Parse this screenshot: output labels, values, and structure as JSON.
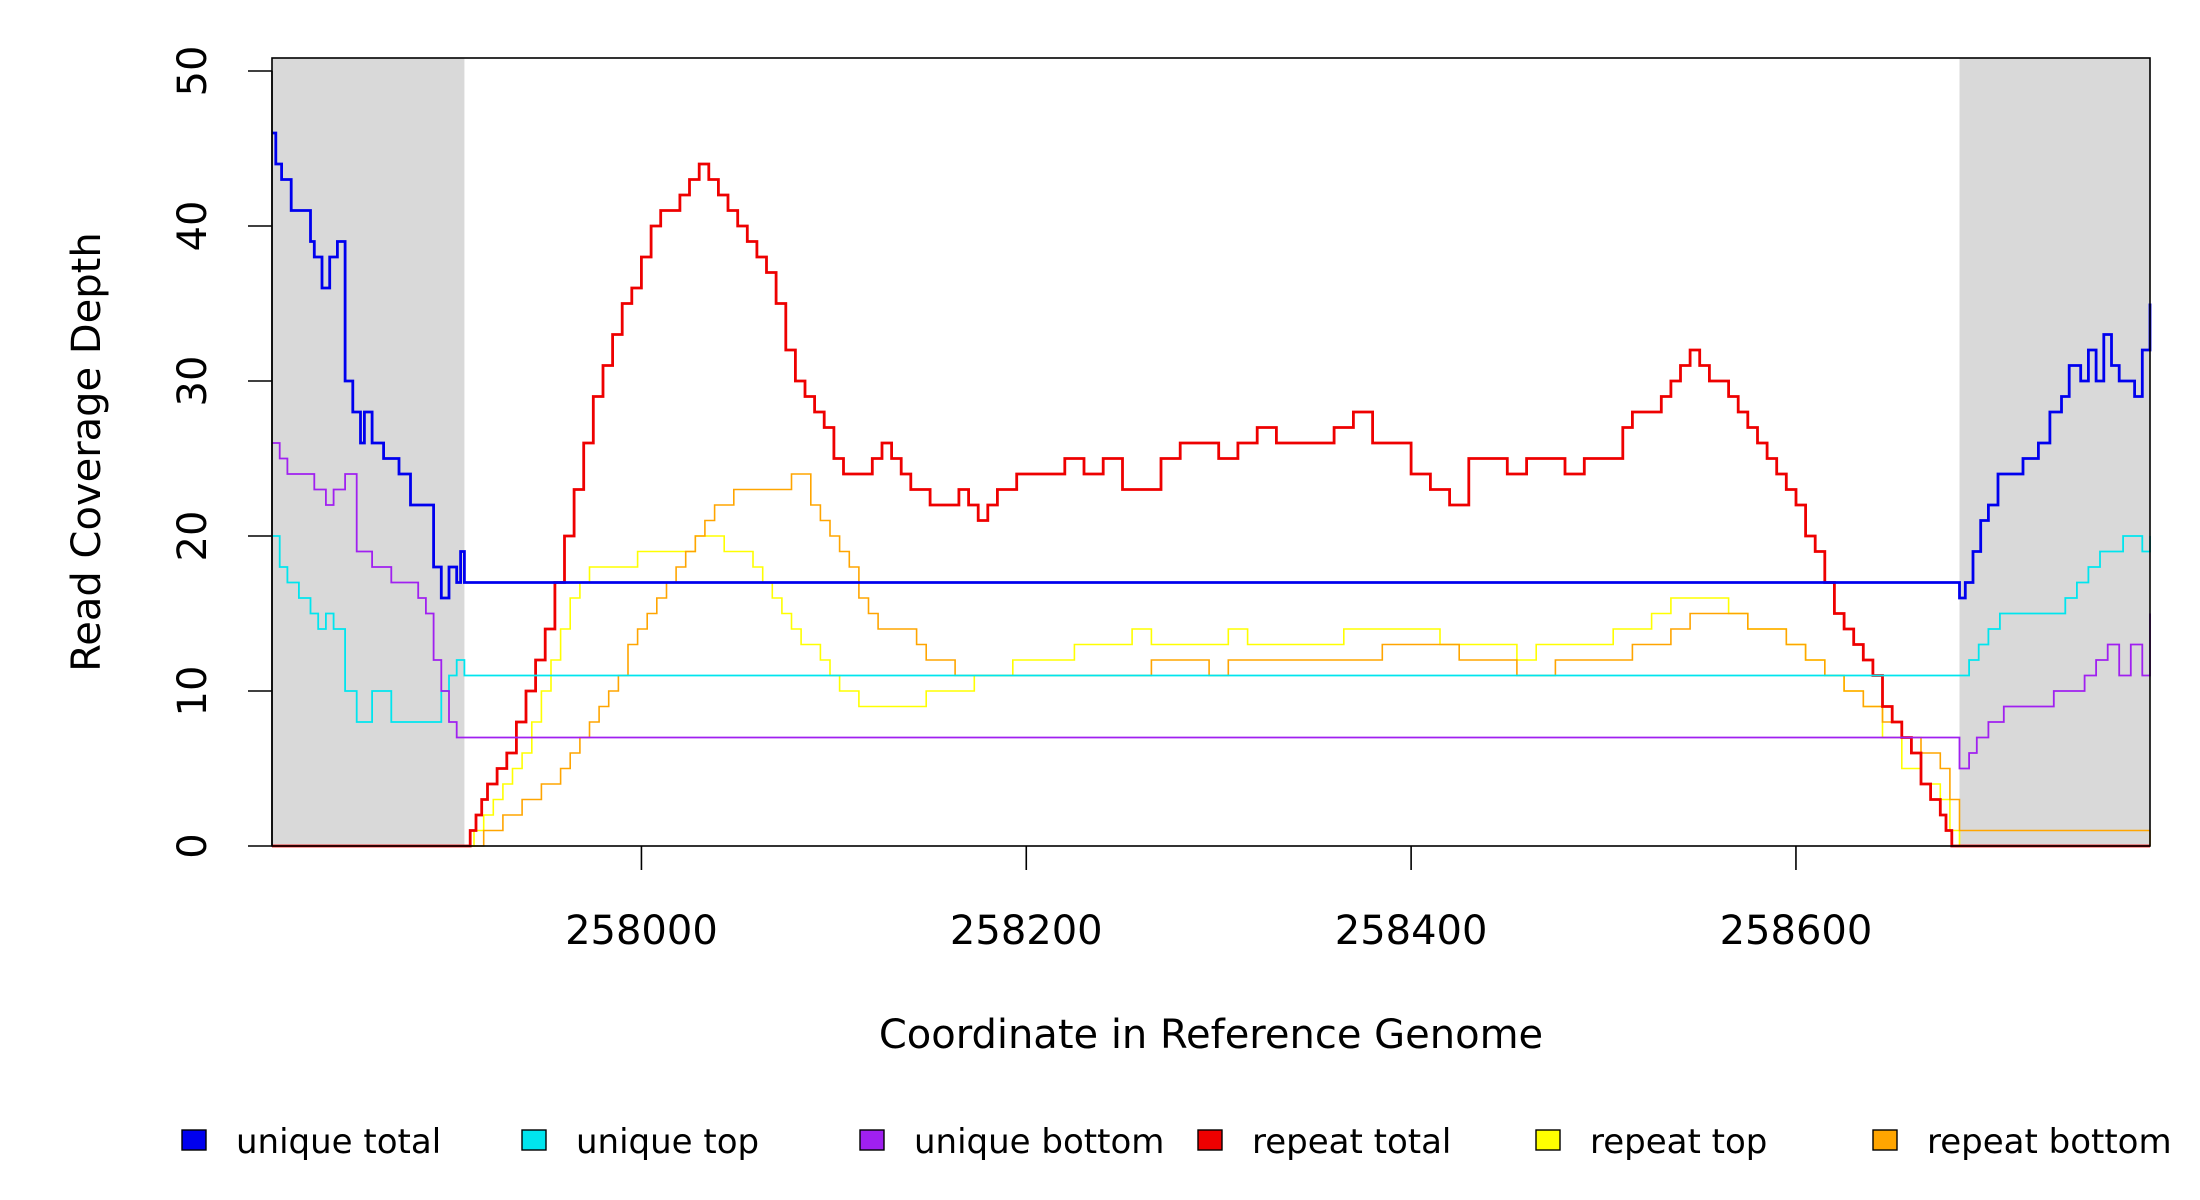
{
  "chart_data": {
    "type": "line",
    "title": "",
    "xlabel": "Coordinate in Reference Genome",
    "ylabel": "Read Coverage Depth",
    "xlim": [
      257808,
      258784
    ],
    "ylim": [
      0,
      50
    ],
    "x_ticks": [
      258000,
      258200,
      258400,
      258600
    ],
    "x_tick_labels": [
      "258000",
      "258200",
      "258400",
      "258600"
    ],
    "y_ticks": [
      0,
      10,
      20,
      30,
      40,
      50
    ],
    "y_tick_labels": [
      "0",
      "10",
      "20",
      "30",
      "40",
      "50"
    ],
    "shaded_regions": [
      [
        257808,
        257908
      ],
      [
        258685,
        258784
      ]
    ],
    "shade_color": "#d9d9d9",
    "grid": false,
    "legend_position": "bottom",
    "series": [
      {
        "name": "unique total",
        "color": "#0000ee",
        "x": [
          257808,
          257810,
          257813,
          257818,
          257828,
          257830,
          257834,
          257838,
          257842,
          257846,
          257850,
          257854,
          257856,
          257860,
          257866,
          257874,
          257880,
          257892,
          257896,
          257900,
          257904,
          257906,
          257908,
          258685,
          258688,
          258692,
          258696,
          258700,
          258705,
          258712,
          258718,
          258726,
          258732,
          258738,
          258742,
          258748,
          258752,
          258756,
          258760,
          258764,
          258768,
          258772,
          258776,
          258780,
          258784
        ],
        "y": [
          46,
          44,
          43,
          41,
          39,
          38,
          36,
          38,
          39,
          30,
          28,
          26,
          28,
          26,
          25,
          24,
          22,
          18,
          16,
          18,
          17,
          19,
          17,
          16,
          17,
          19,
          21,
          22,
          24,
          24,
          25,
          26,
          28,
          29,
          31,
          30,
          32,
          30,
          33,
          31,
          30,
          30,
          29,
          32,
          35
        ]
      },
      {
        "name": "unique top",
        "color": "#00e5ee",
        "x": [
          257808,
          257812,
          257816,
          257822,
          257828,
          257832,
          257836,
          257840,
          257846,
          257852,
          257860,
          257870,
          257880,
          257890,
          257896,
          257900,
          257904,
          257908,
          258685,
          258690,
          258695,
          258700,
          258706,
          258712,
          258720,
          258730,
          258740,
          258746,
          258752,
          258758,
          258764,
          258770,
          258776,
          258780,
          258784
        ],
        "y": [
          20,
          18,
          17,
          16,
          15,
          14,
          15,
          14,
          10,
          8,
          10,
          8,
          8,
          8,
          10,
          11,
          12,
          11,
          11,
          12,
          13,
          14,
          15,
          15,
          15,
          15,
          16,
          17,
          18,
          19,
          19,
          20,
          20,
          19,
          20
        ]
      },
      {
        "name": "unique bottom",
        "color": "#a020f0",
        "x": [
          257808,
          257812,
          257816,
          257822,
          257830,
          257836,
          257840,
          257846,
          257852,
          257860,
          257870,
          257880,
          257884,
          257888,
          257892,
          257896,
          257900,
          257904,
          257908,
          258685,
          258690,
          258694,
          258700,
          258708,
          258716,
          258724,
          258734,
          258744,
          258750,
          258756,
          258762,
          258768,
          258774,
          258780,
          258784
        ],
        "y": [
          26,
          25,
          24,
          24,
          23,
          22,
          23,
          24,
          19,
          18,
          17,
          17,
          16,
          15,
          12,
          10,
          8,
          7,
          7,
          5,
          6,
          7,
          8,
          9,
          9,
          9,
          10,
          10,
          11,
          12,
          13,
          11,
          13,
          11,
          15
        ]
      },
      {
        "name": "repeat total",
        "color": "#ee0000",
        "x": [
          257808,
          257908,
          257911,
          257914,
          257917,
          257920,
          257925,
          257930,
          257935,
          257940,
          257945,
          257950,
          257955,
          257960,
          257965,
          257970,
          257975,
          257980,
          257985,
          257990,
          257995,
          258000,
          258005,
          258010,
          258015,
          258020,
          258025,
          258030,
          258035,
          258040,
          258045,
          258050,
          258055,
          258060,
          258065,
          258070,
          258075,
          258080,
          258085,
          258090,
          258095,
          258100,
          258105,
          258110,
          258115,
          258120,
          258125,
          258130,
          258135,
          258140,
          258145,
          258150,
          258155,
          258160,
          258165,
          258170,
          258175,
          258180,
          258185,
          258190,
          258195,
          258200,
          258210,
          258220,
          258230,
          258240,
          258250,
          258260,
          258270,
          258280,
          258290,
          258300,
          258310,
          258320,
          258330,
          258340,
          258350,
          258360,
          258370,
          258380,
          258390,
          258400,
          258410,
          258420,
          258430,
          258440,
          258450,
          258460,
          258470,
          258480,
          258490,
          258500,
          258510,
          258515,
          258520,
          258525,
          258530,
          258535,
          258540,
          258545,
          258550,
          258555,
          258560,
          258565,
          258570,
          258575,
          258580,
          258585,
          258590,
          258595,
          258600,
          258605,
          258610,
          258615,
          258620,
          258625,
          258630,
          258635,
          258640,
          258645,
          258650,
          258655,
          258660,
          258665,
          258670,
          258675,
          258678,
          258681,
          258684,
          258685,
          258784
        ],
        "y": [
          0,
          0,
          1,
          2,
          3,
          4,
          5,
          6,
          8,
          10,
          12,
          14,
          17,
          20,
          23,
          26,
          29,
          31,
          33,
          35,
          36,
          38,
          40,
          41,
          41,
          42,
          43,
          44,
          43,
          42,
          41,
          40,
          39,
          38,
          37,
          35,
          32,
          30,
          29,
          28,
          27,
          25,
          24,
          24,
          24,
          25,
          26,
          25,
          24,
          23,
          23,
          22,
          22,
          22,
          23,
          22,
          21,
          22,
          23,
          23,
          24,
          24,
          24,
          25,
          24,
          25,
          23,
          23,
          25,
          26,
          26,
          25,
          26,
          27,
          26,
          26,
          26,
          27,
          28,
          26,
          26,
          24,
          23,
          22,
          25,
          25,
          24,
          25,
          25,
          24,
          25,
          25,
          27,
          28,
          28,
          28,
          29,
          30,
          31,
          32,
          31,
          30,
          30,
          29,
          28,
          27,
          26,
          25,
          24,
          23,
          22,
          20,
          19,
          17,
          15,
          14,
          13,
          12,
          11,
          9,
          8,
          7,
          6,
          4,
          3,
          2,
          1,
          0,
          0,
          0,
          0
        ]
      },
      {
        "name": "repeat top",
        "color": "#ffff00",
        "x": [
          257808,
          257908,
          257913,
          257918,
          257923,
          257928,
          257933,
          257938,
          257943,
          257948,
          257953,
          257958,
          257963,
          257968,
          257973,
          257978,
          257983,
          257988,
          257993,
          257998,
          258003,
          258008,
          258013,
          258018,
          258023,
          258028,
          258033,
          258038,
          258043,
          258048,
          258053,
          258058,
          258063,
          258068,
          258073,
          258078,
          258083,
          258088,
          258093,
          258098,
          258103,
          258108,
          258113,
          258118,
          258123,
          258128,
          258133,
          258138,
          258143,
          258148,
          258153,
          258158,
          258163,
          258168,
          258173,
          258178,
          258183,
          258188,
          258193,
          258198,
          258205,
          258215,
          258225,
          258235,
          258245,
          258255,
          258265,
          258275,
          258285,
          258295,
          258305,
          258315,
          258325,
          258335,
          258345,
          258355,
          258365,
          258375,
          258385,
          258395,
          258405,
          258415,
          258425,
          258435,
          258445,
          258455,
          258465,
          258475,
          258485,
          258495,
          258505,
          258515,
          258525,
          258535,
          258545,
          258555,
          258565,
          258575,
          258585,
          258595,
          258605,
          258615,
          258625,
          258635,
          258645,
          258655,
          258665,
          258675,
          258680,
          258685,
          258784
        ],
        "y": [
          0,
          0,
          1,
          2,
          3,
          4,
          5,
          6,
          8,
          10,
          12,
          14,
          16,
          17,
          18,
          18,
          18,
          18,
          18,
          19,
          19,
          19,
          19,
          19,
          19,
          20,
          20,
          20,
          19,
          19,
          19,
          18,
          17,
          16,
          15,
          14,
          13,
          13,
          12,
          11,
          10,
          10,
          9,
          9,
          9,
          9,
          9,
          9,
          9,
          10,
          10,
          10,
          10,
          10,
          11,
          11,
          11,
          11,
          12,
          12,
          12,
          12,
          13,
          13,
          13,
          14,
          13,
          13,
          13,
          13,
          14,
          13,
          13,
          13,
          13,
          13,
          14,
          14,
          14,
          14,
          14,
          13,
          13,
          13,
          13,
          12,
          13,
          13,
          13,
          13,
          14,
          14,
          15,
          16,
          16,
          16,
          15,
          14,
          14,
          13,
          12,
          11,
          10,
          9,
          7,
          5,
          4,
          3,
          1,
          0,
          0
        ]
      },
      {
        "name": "repeat bottom",
        "color": "#ffa500",
        "x": [
          257808,
          257908,
          257913,
          257918,
          257923,
          257928,
          257933,
          257938,
          257943,
          257948,
          257953,
          257958,
          257963,
          257968,
          257973,
          257978,
          257983,
          257988,
          257993,
          257998,
          258003,
          258008,
          258013,
          258018,
          258023,
          258028,
          258033,
          258038,
          258043,
          258048,
          258053,
          258058,
          258063,
          258068,
          258073,
          258078,
          258083,
          258088,
          258093,
          258098,
          258103,
          258108,
          258113,
          258118,
          258123,
          258128,
          258133,
          258138,
          258143,
          258148,
          258153,
          258158,
          258163,
          258168,
          258173,
          258178,
          258183,
          258188,
          258193,
          258198,
          258205,
          258215,
          258225,
          258235,
          258245,
          258255,
          258265,
          258275,
          258285,
          258295,
          258305,
          258315,
          258325,
          258335,
          258345,
          258355,
          258365,
          258375,
          258385,
          258395,
          258405,
          258415,
          258425,
          258435,
          258445,
          258455,
          258465,
          258475,
          258485,
          258495,
          258505,
          258515,
          258525,
          258535,
          258545,
          258555,
          258565,
          258575,
          258585,
          258595,
          258605,
          258615,
          258625,
          258635,
          258645,
          258655,
          258665,
          258675,
          258680,
          258685,
          258784
        ],
        "y": [
          0,
          0,
          0,
          1,
          1,
          2,
          2,
          3,
          3,
          4,
          4,
          5,
          6,
          7,
          8,
          9,
          10,
          11,
          13,
          14,
          15,
          16,
          17,
          18,
          19,
          20,
          21,
          22,
          22,
          23,
          23,
          23,
          23,
          23,
          23,
          24,
          24,
          22,
          21,
          20,
          19,
          18,
          16,
          15,
          14,
          14,
          14,
          14,
          13,
          12,
          12,
          12,
          11,
          11,
          11,
          11,
          11,
          11,
          11,
          11,
          11,
          11,
          11,
          11,
          11,
          11,
          12,
          12,
          12,
          11,
          12,
          12,
          12,
          12,
          12,
          12,
          12,
          12,
          13,
          13,
          13,
          13,
          12,
          12,
          12,
          11,
          11,
          12,
          12,
          12,
          12,
          13,
          13,
          14,
          15,
          15,
          15,
          14,
          14,
          13,
          12,
          11,
          10,
          9,
          8,
          7,
          6,
          5,
          3,
          1,
          0
        ]
      }
    ]
  }
}
